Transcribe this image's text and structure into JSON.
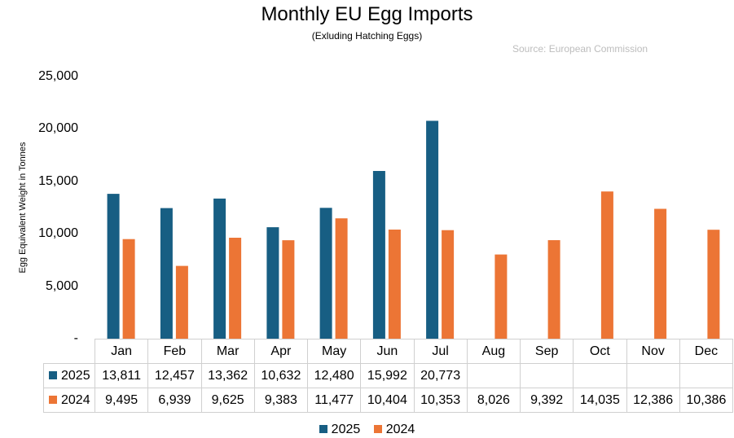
{
  "title": "Monthly EU Egg Imports",
  "subtitle": "(Exluding Hatching Eggs)",
  "source": "Source: European Commission",
  "colors": {
    "2025": "#175e83",
    "2024": "#ec7535"
  },
  "chart_data": {
    "type": "bar",
    "title": "Monthly EU Egg Imports",
    "subtitle": "(Exluding Hatching Eggs)",
    "ylabel": "Egg Equivalent Weight in Tonnes",
    "xlabel": "",
    "ylim": [
      0,
      25000
    ],
    "yticks": [
      "-",
      "5,000",
      "10,000",
      "15,000",
      "20,000",
      "25,000"
    ],
    "categories": [
      "Jan",
      "Feb",
      "Mar",
      "Apr",
      "May",
      "Jun",
      "Jul",
      "Aug",
      "Sep",
      "Oct",
      "Nov",
      "Dec"
    ],
    "series": [
      {
        "name": "2025",
        "values": [
          13811,
          12457,
          13362,
          10632,
          12480,
          15992,
          20773,
          null,
          null,
          null,
          null,
          null
        ],
        "labels": [
          "13,811",
          "12,457",
          "13,362",
          "10,632",
          "12,480",
          "15,992",
          "20,773",
          "",
          "",
          "",
          "",
          ""
        ]
      },
      {
        "name": "2024",
        "values": [
          9495,
          6939,
          9625,
          9383,
          11477,
          10404,
          10353,
          8026,
          9392,
          14035,
          12386,
          10386
        ],
        "labels": [
          "9,495",
          "6,939",
          "9,625",
          "9,383",
          "11,477",
          "10,404",
          "10,353",
          "8,026",
          "9,392",
          "14,035",
          "12,386",
          "10,386"
        ]
      }
    ],
    "grid": false,
    "legend": "bottom",
    "data_table": true
  }
}
